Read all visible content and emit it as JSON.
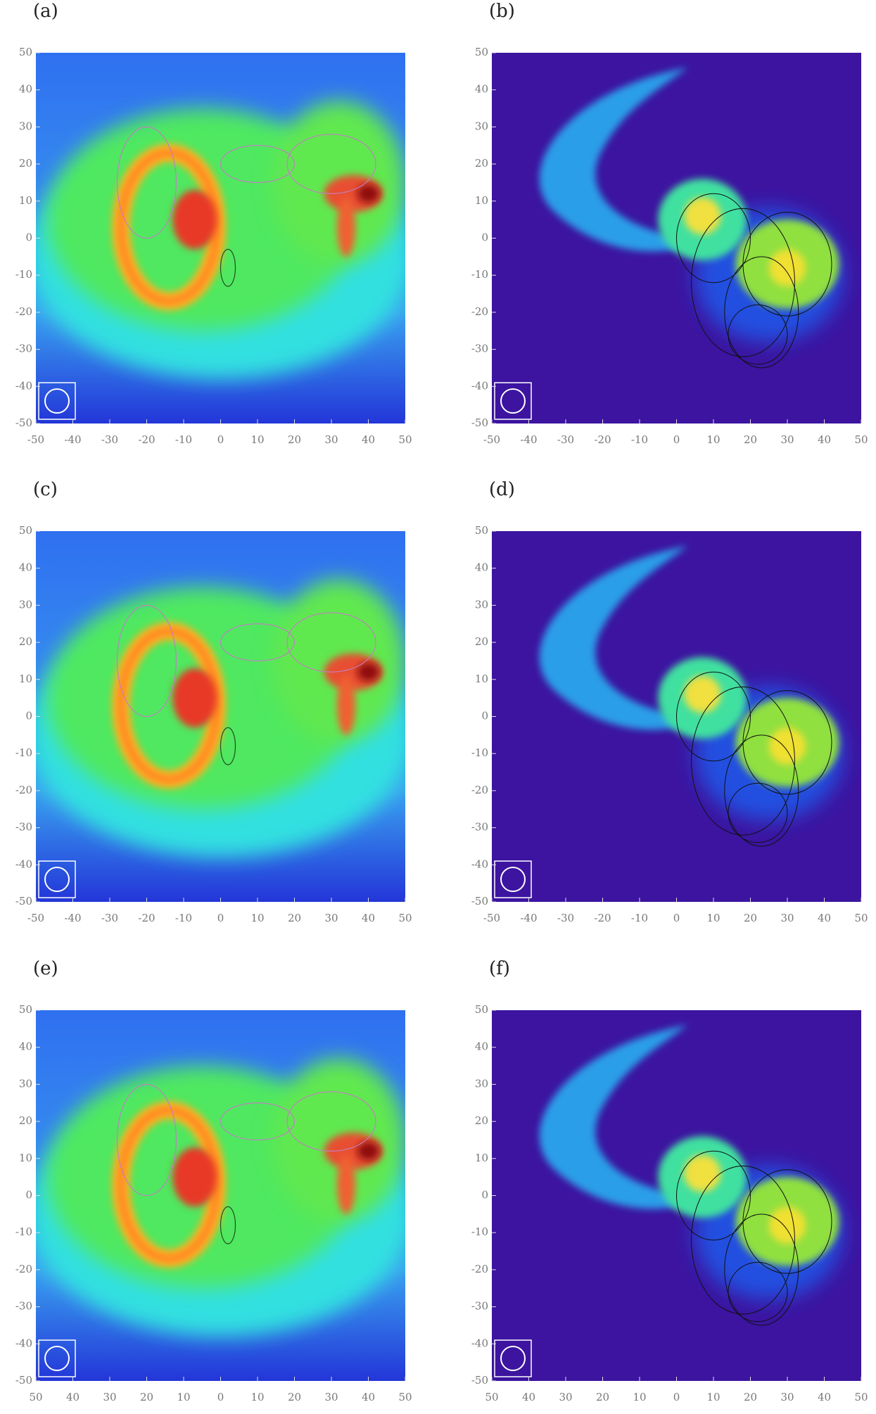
{
  "chart_data": [
    {
      "type": "image",
      "title": "(a)",
      "xlim": [
        -50,
        50
      ],
      "ylim": [
        -50,
        50
      ],
      "xticks": [
        -50,
        -40,
        -30,
        -20,
        -10,
        0,
        10,
        20,
        30,
        40,
        50
      ],
      "yticks": [
        -50,
        -40,
        -30,
        -20,
        -10,
        0,
        10,
        20,
        30,
        40,
        50
      ]
    },
    {
      "type": "image",
      "title": "(b)",
      "xlim": [
        -50,
        50
      ],
      "ylim": [
        -50,
        50
      ],
      "xticks": [
        -50,
        -40,
        -30,
        -20,
        -10,
        0,
        10,
        20,
        30,
        40,
        50
      ],
      "yticks": [
        -50,
        -40,
        -30,
        -20,
        -10,
        0,
        10,
        20,
        30,
        40,
        50
      ]
    },
    {
      "type": "image",
      "title": "(c)",
      "xlim": [
        -50,
        50
      ],
      "ylim": [
        -50,
        50
      ],
      "xticks": [
        -50,
        -40,
        -30,
        -20,
        -10,
        0,
        10,
        20,
        30,
        40,
        50
      ],
      "yticks": [
        -50,
        -40,
        -30,
        -20,
        -10,
        0,
        10,
        20,
        30,
        40,
        50
      ]
    },
    {
      "type": "image",
      "title": "(d)",
      "xlim": [
        -50,
        50
      ],
      "ylim": [
        -50,
        50
      ],
      "xticks": [
        -50,
        -40,
        -30,
        -20,
        -10,
        0,
        10,
        20,
        30,
        40,
        50
      ],
      "yticks": [
        -50,
        -40,
        -30,
        -20,
        -10,
        0,
        10,
        20,
        30,
        40,
        50
      ]
    },
    {
      "type": "image",
      "title": "(e)",
      "xlim": [
        -50,
        50
      ],
      "ylim": [
        -50,
        50
      ],
      "xticks": [
        {
          "value": -50,
          "label": "50"
        },
        {
          "value": -40,
          "label": "40"
        },
        {
          "value": -30,
          "label": "30"
        },
        {
          "value": -20,
          "label": "20"
        },
        {
          "value": -10,
          "label": "10"
        },
        0,
        10,
        20,
        30,
        40,
        50
      ],
      "yticks": [
        -50,
        -40,
        -30,
        -20,
        -10,
        0,
        10,
        20,
        30,
        40,
        50
      ]
    },
    {
      "type": "image",
      "title": "(f)",
      "xlim": [
        -50,
        50
      ],
      "ylim": [
        -50,
        50
      ],
      "xticks": [
        {
          "value": -50,
          "label": "50"
        },
        {
          "value": -40,
          "label": "40"
        },
        {
          "value": -30,
          "label": "30"
        },
        {
          "value": -20,
          "label": "20"
        },
        {
          "value": -10,
          "label": "10"
        },
        0,
        10,
        20,
        30,
        40,
        50
      ],
      "yticks": [
        -50,
        -40,
        -30,
        -20,
        -10,
        0,
        10,
        20,
        30,
        40,
        50
      ]
    }
  ]
}
